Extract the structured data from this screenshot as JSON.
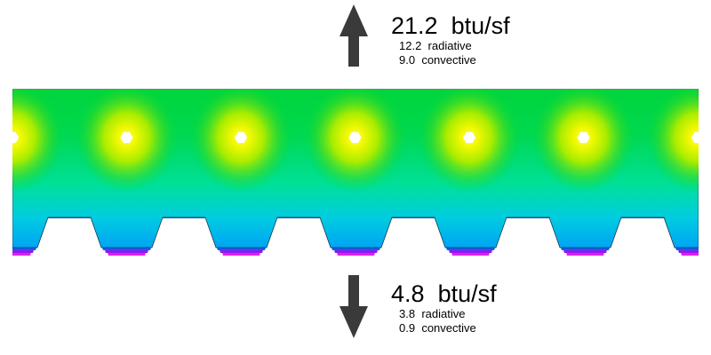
{
  "top_flux": {
    "total_value": "21.2",
    "unit": "btu/sf",
    "radiative_value": "12.2",
    "radiative_label": "radiative",
    "convective_value": "9.0",
    "convective_label": "convective"
  },
  "bottom_flux": {
    "total_value": "4.8",
    "unit": "btu/sf",
    "radiative_value": "3.8",
    "radiative_label": "radiative",
    "convective_value": "0.9",
    "convective_label": "convective"
  },
  "colors": {
    "slab_top": "#00d838",
    "slab_mid": "#00e070",
    "slab_lower": "#00d0c8",
    "slab_base": "#00a8f0",
    "underside_outer": "#8018f0",
    "underside_inner": "#e020e8",
    "hot_spot": "#ffff00",
    "tube": "#ffffff",
    "arrow": "#3a3a3a"
  },
  "tube_count": 7
}
